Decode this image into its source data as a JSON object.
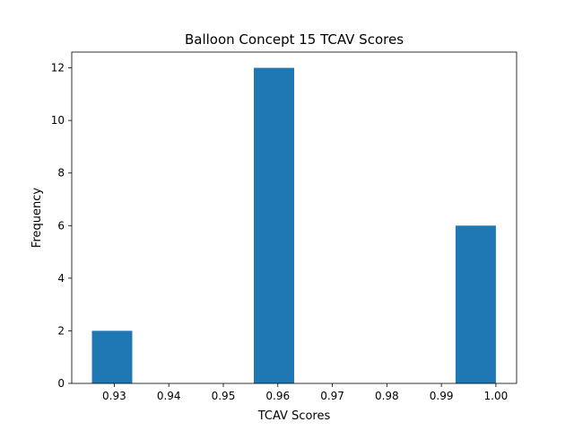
{
  "chart_data": {
    "type": "bar",
    "title": "Balloon Concept 15 TCAV Scores",
    "xlabel": "TCAV Scores",
    "ylabel": "Frequency",
    "xlim": [
      0.9222,
      1.0038
    ],
    "ylim": [
      0,
      12.6
    ],
    "xticks": [
      0.93,
      0.94,
      0.95,
      0.96,
      0.97,
      0.98,
      0.99,
      1.0
    ],
    "xtick_labels": [
      "0.93",
      "0.94",
      "0.95",
      "0.96",
      "0.97",
      "0.98",
      "0.99",
      "1.00"
    ],
    "yticks": [
      0,
      2,
      4,
      6,
      8,
      10,
      12
    ],
    "ytick_labels": [
      "0",
      "2",
      "4",
      "6",
      "8",
      "10",
      "12"
    ],
    "bars": [
      {
        "x0": 0.9259,
        "x1": 0.9333,
        "value": 2
      },
      {
        "x0": 0.9556,
        "x1": 0.963,
        "value": 12
      },
      {
        "x0": 0.9926,
        "x1": 1.0,
        "value": 6
      }
    ],
    "bar_color": "#1f77b4",
    "grid": false,
    "legend": "none"
  }
}
